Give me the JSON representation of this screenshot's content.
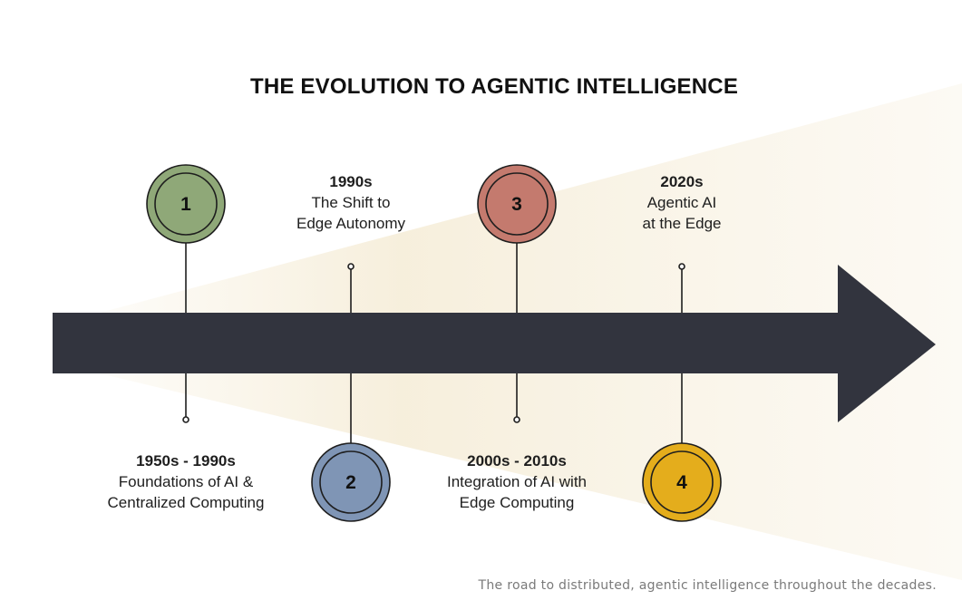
{
  "title": "THE EVOLUTION TO AGENTIC INTELLIGENCE",
  "caption": "The road to distributed, agentic intelligence throughout the decades.",
  "colors": {
    "arrow": "#32343e",
    "wedge": "#f5ecd6",
    "stage_1": "#8fa878",
    "stage_2": "#7f95b5",
    "stage_3": "#c47a6e",
    "stage_4": "#e4ad1c"
  },
  "stages": [
    {
      "number": "1",
      "period": "1950s - 1990s",
      "line1": "Foundations of AI &",
      "line2": "Centralized Computing"
    },
    {
      "number": "2",
      "period": "1990s",
      "line1": "The Shift to",
      "line2": "Edge Autonomy"
    },
    {
      "number": "3",
      "period": "2000s - 2010s",
      "line1": "Integration of AI with",
      "line2": "Edge Computing"
    },
    {
      "number": "4",
      "period": "2020s",
      "line1": "Agentic AI",
      "line2": "at the Edge"
    }
  ]
}
